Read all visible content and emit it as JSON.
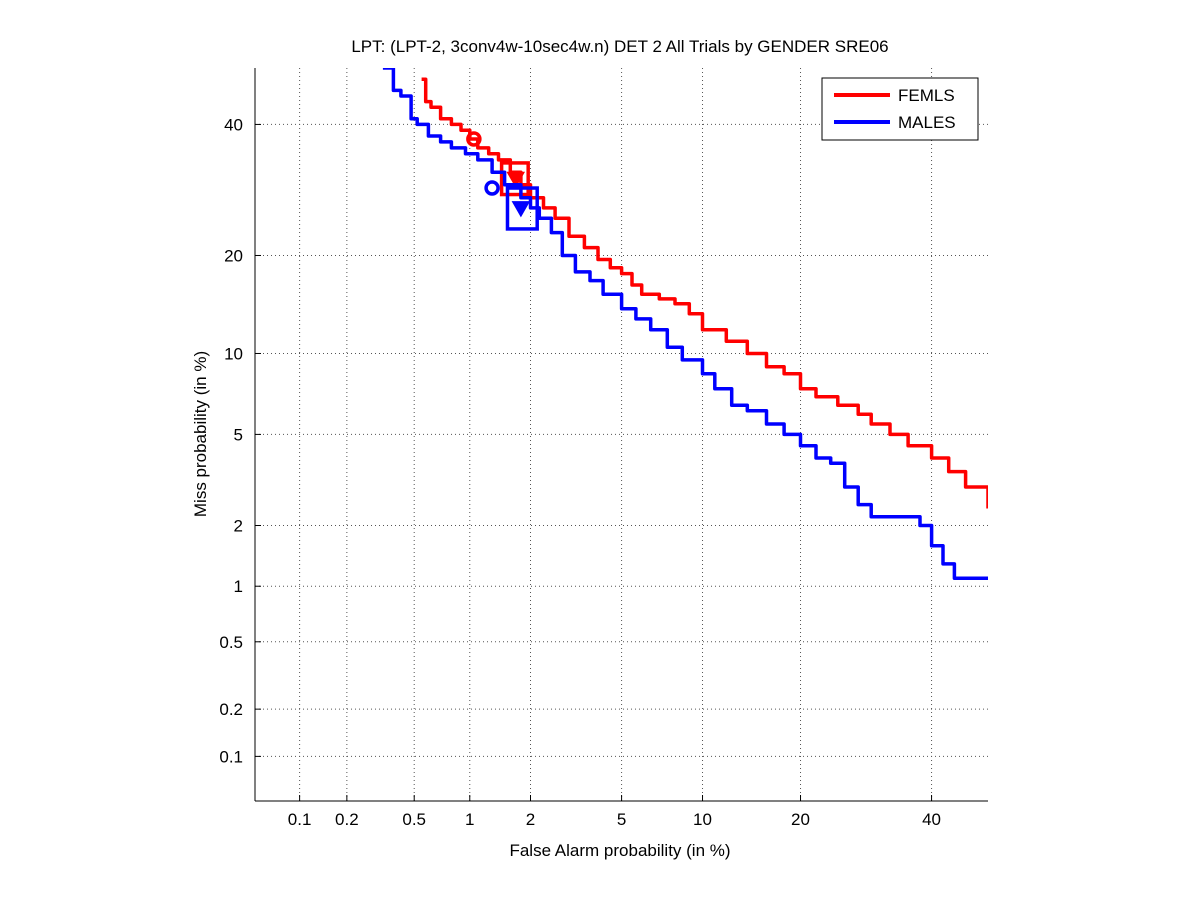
{
  "chart_data": {
    "type": "line",
    "scale": "normal-deviate (DET)",
    "title": "LPT: (LPT-2, 3conv4w-10sec4w.n) DET 2 All Trials by GENDER SRE06",
    "xlabel": "False Alarm probability (in %)",
    "ylabel": "Miss probability (in %)",
    "xlim": [
      0.05,
      50
    ],
    "ylim": [
      0.05,
      50
    ],
    "xticks": [
      0.1,
      0.2,
      0.5,
      1,
      2,
      5,
      10,
      20,
      40
    ],
    "xtick_labels": [
      "0.1",
      "0.2",
      "0.5",
      "1",
      "2",
      "5",
      "10",
      "20",
      "40"
    ],
    "yticks": [
      0.1,
      0.2,
      0.5,
      1,
      2,
      5,
      10,
      20,
      40
    ],
    "ytick_labels": [
      "0.1",
      "0.2",
      "0.5",
      "1",
      "2",
      "5",
      "10",
      "20",
      "40"
    ],
    "grid": true,
    "legend_position": "top-right",
    "series": [
      {
        "name": "FEMLS",
        "color": "#ff0000",
        "x": [
          0.55,
          0.58,
          0.62,
          0.7,
          0.8,
          0.9,
          1.0,
          1.1,
          1.25,
          1.4,
          1.6,
          1.8,
          2.0,
          2.3,
          2.6,
          3.0,
          3.5,
          4.0,
          4.5,
          5.0,
          5.5,
          6.0,
          7.0,
          8.0,
          9.0,
          10.0,
          12.0,
          14.0,
          16.0,
          18.0,
          20.0,
          22.0,
          25.0,
          28.0,
          30.0,
          33.0,
          36.0,
          40.0,
          43.0,
          46.0,
          50.0
        ],
        "y": [
          48,
          44,
          43,
          41,
          40,
          39,
          37.5,
          36,
          35,
          34,
          32,
          30,
          28,
          26.5,
          25,
          22.5,
          21,
          19.5,
          18.5,
          17.8,
          16.5,
          15.5,
          15,
          14.5,
          13.5,
          12,
          11,
          10,
          9,
          8.5,
          7.5,
          7,
          6.5,
          6,
          5.5,
          5,
          4.5,
          4,
          3.5,
          3,
          2.4
        ],
        "operating_point_actual": {
          "x": 1.7,
          "y": 31
        },
        "operating_point_min": {
          "x": 1.05,
          "y": 37.5
        },
        "confidence_box": {
          "x": [
            1.45,
            1.95
          ],
          "y": [
            28.5,
            33.5
          ]
        }
      },
      {
        "name": "MALES",
        "color": "#0000ff",
        "x": [
          0.33,
          0.38,
          0.42,
          0.48,
          0.52,
          0.6,
          0.7,
          0.8,
          0.95,
          1.1,
          1.3,
          1.5,
          1.8,
          2.0,
          2.2,
          2.5,
          2.8,
          3.2,
          3.7,
          4.2,
          5.0,
          5.7,
          6.5,
          7.5,
          8.5,
          10.0,
          11.0,
          12.5,
          14.0,
          16.0,
          18.0,
          20.0,
          22.0,
          24.0,
          26.0,
          28.0,
          30.0,
          35.0,
          38.0,
          40.0,
          42.0,
          44.0,
          50.0
        ],
        "y": [
          50,
          46,
          45,
          41,
          40,
          38,
          37,
          36,
          35,
          34,
          32,
          30,
          28,
          26.5,
          25,
          23,
          20,
          18,
          17,
          15.5,
          14,
          13,
          12,
          10.5,
          9.5,
          8.5,
          7.5,
          6.5,
          6.2,
          5.5,
          5,
          4.5,
          4,
          3.8,
          3,
          2.5,
          2.2,
          2.2,
          2.0,
          1.6,
          1.3,
          1.1,
          1.1
        ],
        "operating_point_actual": {
          "x": 1.8,
          "y": 26.5
        },
        "operating_point_min": {
          "x": 1.3,
          "y": 29.5
        },
        "confidence_box": {
          "x": [
            1.55,
            2.15
          ],
          "y": [
            23.5,
            29.5
          ]
        }
      }
    ]
  }
}
